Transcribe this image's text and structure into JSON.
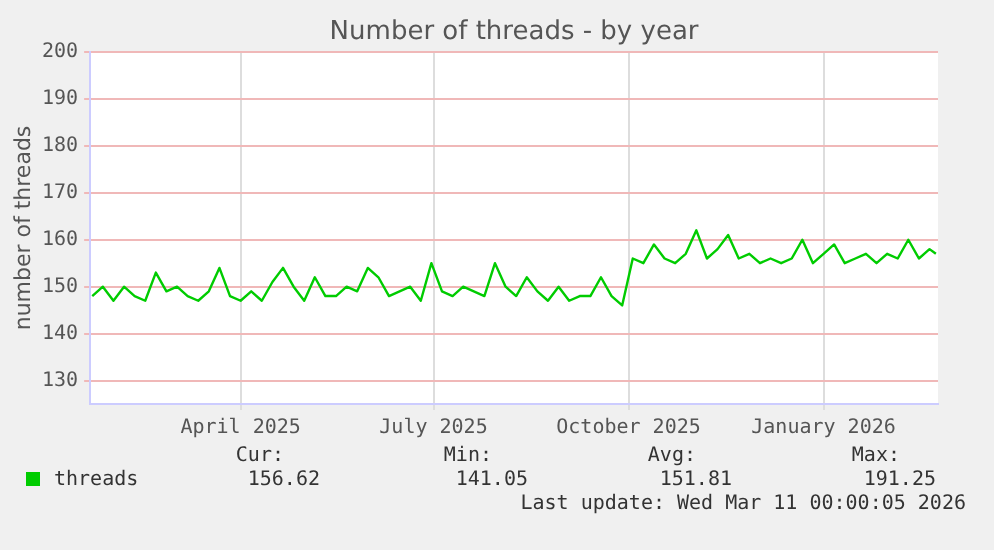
{
  "chart_data": {
    "type": "line",
    "title": "Number of threads - by year",
    "ylabel": "number of threads",
    "x": [
      "2025-02-05",
      "2025-02-10",
      "2025-02-15",
      "2025-02-20",
      "2025-02-25",
      "2025-03-02",
      "2025-03-07",
      "2025-03-12",
      "2025-03-17",
      "2025-03-22",
      "2025-03-27",
      "2025-04-01",
      "2025-04-06",
      "2025-04-11",
      "2025-04-16",
      "2025-04-21",
      "2025-04-26",
      "2025-05-01",
      "2025-05-06",
      "2025-05-11",
      "2025-05-16",
      "2025-05-21",
      "2025-05-26",
      "2025-05-31",
      "2025-06-05",
      "2025-06-10",
      "2025-06-15",
      "2025-06-20",
      "2025-06-25",
      "2025-06-30",
      "2025-07-05",
      "2025-07-10",
      "2025-07-15",
      "2025-07-20",
      "2025-07-25",
      "2025-07-30",
      "2025-08-04",
      "2025-08-09",
      "2025-08-14",
      "2025-08-19",
      "2025-08-24",
      "2025-08-29",
      "2025-09-03",
      "2025-09-08",
      "2025-09-13",
      "2025-09-18",
      "2025-09-23",
      "2025-09-28",
      "2025-10-03",
      "2025-10-08",
      "2025-10-13",
      "2025-10-18",
      "2025-10-23",
      "2025-10-28",
      "2025-11-02",
      "2025-11-07",
      "2025-11-12",
      "2025-11-17",
      "2025-11-22",
      "2025-11-27",
      "2025-12-02",
      "2025-12-07",
      "2025-12-12",
      "2025-12-17",
      "2025-12-22",
      "2025-12-27",
      "2026-01-01",
      "2026-01-06",
      "2026-01-11",
      "2026-01-16",
      "2026-01-21",
      "2026-01-26",
      "2026-01-31",
      "2026-02-05",
      "2026-02-10",
      "2026-02-15",
      "2026-02-20",
      "2026-02-25",
      "2026-03-02",
      "2026-03-07",
      "2026-03-10"
    ],
    "series": [
      {
        "name": "threads",
        "color": "#00cc00",
        "values": [
          148,
          150,
          147,
          150,
          148,
          147,
          153,
          149,
          150,
          148,
          147,
          149,
          154,
          148,
          147,
          149,
          147,
          151,
          154,
          150,
          147,
          152,
          148,
          148,
          150,
          149,
          154,
          152,
          148,
          149,
          150,
          147,
          155,
          149,
          148,
          150,
          149,
          148,
          155,
          150,
          148,
          152,
          149,
          147,
          150,
          147,
          148,
          148,
          152,
          148,
          146,
          156,
          155,
          159,
          156,
          155,
          157,
          162,
          156,
          158,
          161,
          156,
          157,
          155,
          156,
          155,
          156,
          160,
          155,
          157,
          159,
          155,
          156,
          157,
          155,
          157,
          156,
          160,
          156,
          158,
          157
        ]
      }
    ],
    "xlim": [
      "2025-02-04",
      "2026-03-11"
    ],
    "xticks": [
      {
        "value": "2025-04-16",
        "label": "April 2025"
      },
      {
        "value": "2025-07-16",
        "label": "July 2025"
      },
      {
        "value": "2025-10-16",
        "label": "October 2025"
      },
      {
        "value": "2026-01-16",
        "label": "January 2026"
      }
    ],
    "ylim": [
      125,
      200
    ],
    "yticks": [
      130,
      140,
      150,
      160,
      170,
      180,
      190,
      200
    ],
    "grid": true,
    "legend": "bottom",
    "marker": "none",
    "line_style": "solid",
    "annotations": [
      "Cur:",
      "Min:",
      "Avg:",
      "Max:",
      "156.62",
      "141.05",
      "151.81",
      "191.25",
      "Last update: Wed Mar 11 00:00:05 2026"
    ]
  }
}
